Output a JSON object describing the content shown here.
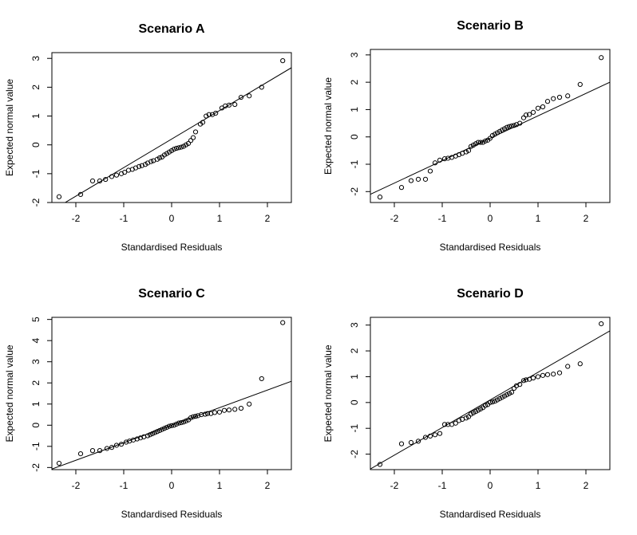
{
  "chart_data": [
    {
      "type": "scatter",
      "title": "Scenario A",
      "xlabel": "Standardised Residuals",
      "ylabel": "Expected normal value",
      "xlim": [
        -2.5,
        2.5
      ],
      "ylim": [
        -2,
        3.2
      ],
      "xticks": [
        -2,
        -1,
        0,
        1,
        2
      ],
      "yticks": [
        -2,
        -1,
        0,
        1,
        2,
        3
      ],
      "grid": false,
      "reference_line": {
        "slope": 0.99,
        "intercept": 0.2
      },
      "points": [
        [
          -2.35,
          -1.8
        ],
        [
          -1.9,
          -1.72
        ],
        [
          -1.65,
          -1.25
        ],
        [
          -1.5,
          -1.25
        ],
        [
          -1.38,
          -1.2
        ],
        [
          -1.25,
          -1.1
        ],
        [
          -1.15,
          -1.05
        ],
        [
          -1.05,
          -1.0
        ],
        [
          -0.98,
          -0.95
        ],
        [
          -0.9,
          -0.88
        ],
        [
          -0.82,
          -0.85
        ],
        [
          -0.75,
          -0.8
        ],
        [
          -0.68,
          -0.75
        ],
        [
          -0.62,
          -0.72
        ],
        [
          -0.55,
          -0.68
        ],
        [
          -0.5,
          -0.63
        ],
        [
          -0.43,
          -0.58
        ],
        [
          -0.38,
          -0.55
        ],
        [
          -0.3,
          -0.5
        ],
        [
          -0.25,
          -0.45
        ],
        [
          -0.2,
          -0.42
        ],
        [
          -0.15,
          -0.35
        ],
        [
          -0.1,
          -0.3
        ],
        [
          -0.05,
          -0.25
        ],
        [
          0.0,
          -0.2
        ],
        [
          0.05,
          -0.15
        ],
        [
          0.1,
          -0.12
        ],
        [
          0.15,
          -0.1
        ],
        [
          0.2,
          -0.08
        ],
        [
          0.25,
          -0.05
        ],
        [
          0.3,
          0.0
        ],
        [
          0.35,
          0.05
        ],
        [
          0.4,
          0.15
        ],
        [
          0.45,
          0.25
        ],
        [
          0.5,
          0.45
        ],
        [
          0.6,
          0.72
        ],
        [
          0.65,
          0.78
        ],
        [
          0.72,
          1.0
        ],
        [
          0.78,
          1.05
        ],
        [
          0.85,
          1.05
        ],
        [
          0.92,
          1.1
        ],
        [
          1.05,
          1.28
        ],
        [
          1.12,
          1.35
        ],
        [
          1.2,
          1.38
        ],
        [
          1.32,
          1.4
        ],
        [
          1.45,
          1.65
        ],
        [
          1.62,
          1.7
        ],
        [
          1.88,
          2.0
        ],
        [
          2.32,
          2.92
        ]
      ]
    },
    {
      "type": "scatter",
      "title": "Scenario B",
      "xlabel": "Standardised Residuals",
      "ylabel": "Expected normal value",
      "xlim": [
        -2.5,
        2.5
      ],
      "ylim": [
        -2.4,
        3.2
      ],
      "xticks": [
        -2,
        -1,
        0,
        1,
        2
      ],
      "yticks": [
        -2,
        -1,
        0,
        1,
        2,
        3
      ],
      "grid": false,
      "reference_line": {
        "slope": 0.82,
        "intercept": -0.05
      },
      "points": [
        [
          -2.3,
          -2.2
        ],
        [
          -1.85,
          -1.85
        ],
        [
          -1.65,
          -1.6
        ],
        [
          -1.5,
          -1.55
        ],
        [
          -1.35,
          -1.55
        ],
        [
          -1.25,
          -1.25
        ],
        [
          -1.15,
          -0.95
        ],
        [
          -1.05,
          -0.85
        ],
        [
          -0.95,
          -0.8
        ],
        [
          -0.88,
          -0.78
        ],
        [
          -0.8,
          -0.75
        ],
        [
          -0.72,
          -0.7
        ],
        [
          -0.65,
          -0.65
        ],
        [
          -0.58,
          -0.6
        ],
        [
          -0.5,
          -0.55
        ],
        [
          -0.45,
          -0.5
        ],
        [
          -0.4,
          -0.35
        ],
        [
          -0.35,
          -0.3
        ],
        [
          -0.3,
          -0.25
        ],
        [
          -0.25,
          -0.2
        ],
        [
          -0.2,
          -0.2
        ],
        [
          -0.15,
          -0.2
        ],
        [
          -0.1,
          -0.15
        ],
        [
          -0.05,
          -0.12
        ],
        [
          0.0,
          -0.05
        ],
        [
          0.05,
          0.05
        ],
        [
          0.1,
          0.1
        ],
        [
          0.15,
          0.15
        ],
        [
          0.2,
          0.2
        ],
        [
          0.25,
          0.25
        ],
        [
          0.3,
          0.3
        ],
        [
          0.35,
          0.35
        ],
        [
          0.4,
          0.38
        ],
        [
          0.45,
          0.4
        ],
        [
          0.5,
          0.42
        ],
        [
          0.55,
          0.45
        ],
        [
          0.62,
          0.5
        ],
        [
          0.7,
          0.7
        ],
        [
          0.75,
          0.8
        ],
        [
          0.82,
          0.82
        ],
        [
          0.9,
          0.9
        ],
        [
          1.0,
          1.05
        ],
        [
          1.1,
          1.1
        ],
        [
          1.2,
          1.3
        ],
        [
          1.32,
          1.4
        ],
        [
          1.45,
          1.45
        ],
        [
          1.62,
          1.5
        ],
        [
          1.88,
          1.92
        ],
        [
          2.32,
          2.9
        ]
      ]
    },
    {
      "type": "scatter",
      "title": "Scenario C",
      "xlabel": "Standardised Residuals",
      "ylabel": "Expected normal value",
      "xlim": [
        -2.5,
        2.5
      ],
      "ylim": [
        -2.1,
        5.1
      ],
      "xticks": [
        -2,
        -1,
        0,
        1,
        2
      ],
      "yticks": [
        -2,
        -1,
        0,
        1,
        2,
        3,
        4,
        5
      ],
      "grid": false,
      "reference_line": {
        "slope": 0.83,
        "intercept": 0.0
      },
      "points": [
        [
          -2.35,
          -1.8
        ],
        [
          -1.9,
          -1.35
        ],
        [
          -1.65,
          -1.2
        ],
        [
          -1.5,
          -1.2
        ],
        [
          -1.35,
          -1.1
        ],
        [
          -1.25,
          -1.05
        ],
        [
          -1.15,
          -0.95
        ],
        [
          -1.05,
          -0.9
        ],
        [
          -0.95,
          -0.8
        ],
        [
          -0.88,
          -0.75
        ],
        [
          -0.8,
          -0.7
        ],
        [
          -0.72,
          -0.65
        ],
        [
          -0.65,
          -0.6
        ],
        [
          -0.58,
          -0.55
        ],
        [
          -0.5,
          -0.5
        ],
        [
          -0.45,
          -0.45
        ],
        [
          -0.4,
          -0.4
        ],
        [
          -0.35,
          -0.35
        ],
        [
          -0.3,
          -0.3
        ],
        [
          -0.25,
          -0.25
        ],
        [
          -0.2,
          -0.2
        ],
        [
          -0.15,
          -0.15
        ],
        [
          -0.1,
          -0.1
        ],
        [
          -0.05,
          -0.05
        ],
        [
          0.0,
          -0.02
        ],
        [
          0.05,
          0.0
        ],
        [
          0.1,
          0.05
        ],
        [
          0.15,
          0.1
        ],
        [
          0.2,
          0.12
        ],
        [
          0.25,
          0.15
        ],
        [
          0.3,
          0.2
        ],
        [
          0.35,
          0.25
        ],
        [
          0.4,
          0.35
        ],
        [
          0.45,
          0.4
        ],
        [
          0.5,
          0.42
        ],
        [
          0.55,
          0.45
        ],
        [
          0.62,
          0.5
        ],
        [
          0.7,
          0.52
        ],
        [
          0.75,
          0.55
        ],
        [
          0.82,
          0.55
        ],
        [
          0.9,
          0.6
        ],
        [
          1.0,
          0.62
        ],
        [
          1.1,
          0.7
        ],
        [
          1.2,
          0.72
        ],
        [
          1.32,
          0.75
        ],
        [
          1.45,
          0.8
        ],
        [
          1.62,
          1.0
        ],
        [
          1.88,
          2.2
        ],
        [
          2.32,
          4.85
        ]
      ]
    },
    {
      "type": "scatter",
      "title": "Scenario D",
      "xlabel": "Standardised Residuals",
      "ylabel": "Expected normal value",
      "xlim": [
        -2.5,
        2.5
      ],
      "ylim": [
        -2.6,
        3.3
      ],
      "xticks": [
        -2,
        -1,
        0,
        1,
        2
      ],
      "yticks": [
        -2,
        -1,
        0,
        1,
        2,
        3
      ],
      "grid": false,
      "reference_line": {
        "slope": 1.07,
        "intercept": 0.1
      },
      "points": [
        [
          -2.3,
          -2.4
        ],
        [
          -1.85,
          -1.6
        ],
        [
          -1.65,
          -1.55
        ],
        [
          -1.5,
          -1.5
        ],
        [
          -1.35,
          -1.35
        ],
        [
          -1.25,
          -1.3
        ],
        [
          -1.15,
          -1.25
        ],
        [
          -1.05,
          -1.2
        ],
        [
          -0.95,
          -0.85
        ],
        [
          -0.88,
          -0.85
        ],
        [
          -0.8,
          -0.85
        ],
        [
          -0.72,
          -0.8
        ],
        [
          -0.65,
          -0.7
        ],
        [
          -0.58,
          -0.65
        ],
        [
          -0.5,
          -0.6
        ],
        [
          -0.45,
          -0.55
        ],
        [
          -0.4,
          -0.45
        ],
        [
          -0.35,
          -0.4
        ],
        [
          -0.3,
          -0.35
        ],
        [
          -0.25,
          -0.3
        ],
        [
          -0.2,
          -0.25
        ],
        [
          -0.15,
          -0.2
        ],
        [
          -0.1,
          -0.12
        ],
        [
          -0.05,
          -0.08
        ],
        [
          0.0,
          0.0
        ],
        [
          0.05,
          0.02
        ],
        [
          0.1,
          0.05
        ],
        [
          0.15,
          0.1
        ],
        [
          0.2,
          0.15
        ],
        [
          0.25,
          0.2
        ],
        [
          0.3,
          0.25
        ],
        [
          0.35,
          0.3
        ],
        [
          0.4,
          0.35
        ],
        [
          0.45,
          0.4
        ],
        [
          0.5,
          0.55
        ],
        [
          0.55,
          0.65
        ],
        [
          0.62,
          0.7
        ],
        [
          0.7,
          0.85
        ],
        [
          0.75,
          0.88
        ],
        [
          0.82,
          0.9
        ],
        [
          0.9,
          0.95
        ],
        [
          1.0,
          1.0
        ],
        [
          1.1,
          1.05
        ],
        [
          1.2,
          1.08
        ],
        [
          1.32,
          1.1
        ],
        [
          1.45,
          1.15
        ],
        [
          1.62,
          1.4
        ],
        [
          1.88,
          1.5
        ],
        [
          2.32,
          3.05
        ]
      ]
    }
  ]
}
